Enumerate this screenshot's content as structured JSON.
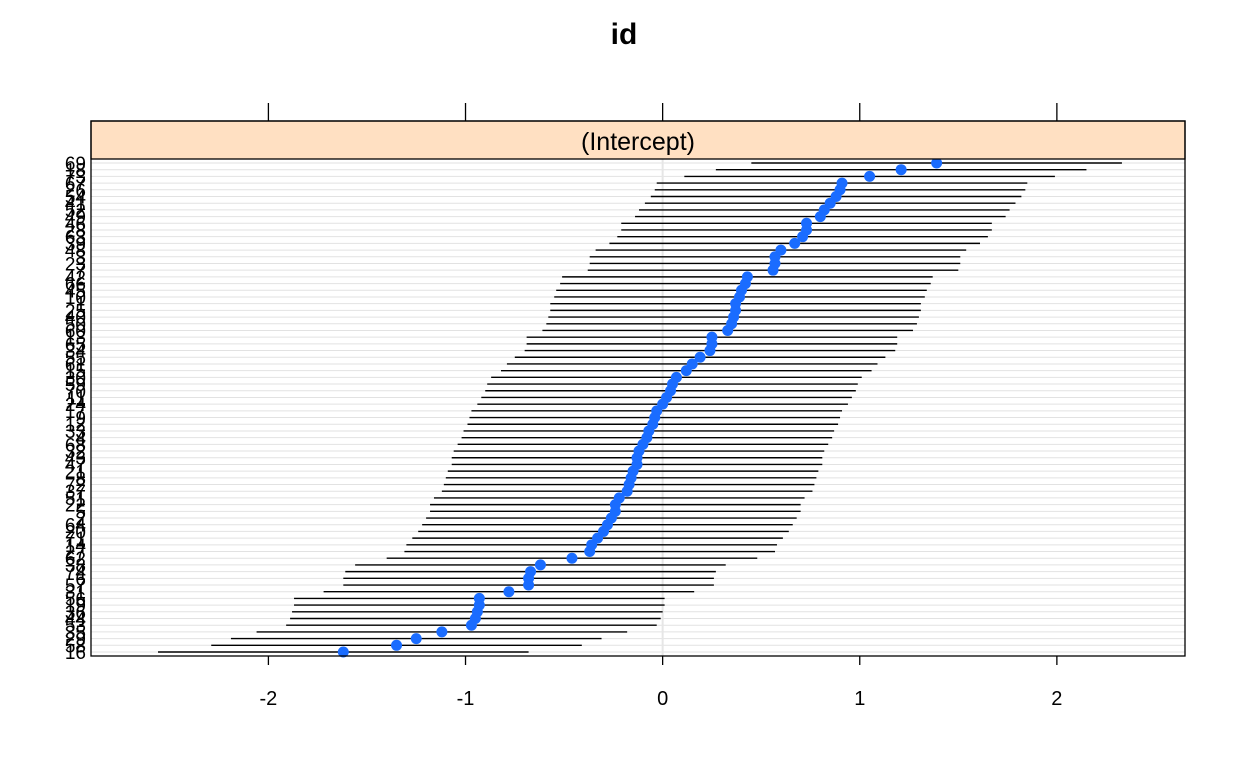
{
  "chart_data": {
    "type": "scatter",
    "subtype": "caterpillar dot plot with interval bars",
    "title": "id",
    "panel_label": "(Intercept)",
    "xlabel": "",
    "ylabel": "",
    "xlim": [
      -2.9,
      2.65
    ],
    "x_ticks": [
      -2,
      -1,
      0,
      1,
      2
    ],
    "x_tick_labels": [
      "-2",
      "-1",
      "0",
      "1",
      "2"
    ],
    "reference_line_x": 0,
    "grid": true,
    "y_axis_note": "overlapping subject-id tick labels, sorted by estimate",
    "colors": {
      "point": "#1a6cff",
      "strip": "#ffe0c2",
      "interval": "#000000",
      "gridline": "#e2e2e2",
      "refline": "#e6e6e6"
    },
    "levels": [
      "16",
      "58",
      "29",
      "35",
      "53",
      "44",
      "36",
      "19",
      "56",
      "31",
      "57",
      "6",
      "74",
      "38",
      "62",
      "27",
      "14",
      "71",
      "20",
      "64",
      "2",
      "5",
      "22",
      "51",
      "37",
      "72",
      "8",
      "21",
      "47",
      "43",
      "32",
      "68",
      "4",
      "33",
      "12",
      "9",
      "17",
      "24",
      "11",
      "70",
      "59",
      "30",
      "15",
      "61",
      "55",
      "34",
      "65",
      "13",
      "60",
      "50",
      "40",
      "25",
      "1",
      "10",
      "45",
      "66",
      "42",
      "7",
      "23",
      "3",
      "48",
      "39",
      "63",
      "28",
      "46",
      "49",
      "52",
      "41",
      "54",
      "26",
      "67",
      "73",
      "18",
      "69"
    ],
    "estimates": [
      -1.62,
      -1.35,
      -1.25,
      -1.12,
      -0.97,
      -0.95,
      -0.94,
      -0.93,
      -0.93,
      -0.78,
      -0.68,
      -0.68,
      -0.67,
      -0.62,
      -0.46,
      -0.37,
      -0.36,
      -0.33,
      -0.3,
      -0.28,
      -0.26,
      -0.24,
      -0.24,
      -0.22,
      -0.18,
      -0.17,
      -0.16,
      -0.15,
      -0.13,
      -0.13,
      -0.12,
      -0.1,
      -0.08,
      -0.07,
      -0.05,
      -0.04,
      -0.03,
      0.0,
      0.02,
      0.04,
      0.05,
      0.07,
      0.12,
      0.15,
      0.19,
      0.24,
      0.25,
      0.25,
      0.33,
      0.35,
      0.36,
      0.37,
      0.37,
      0.39,
      0.4,
      0.42,
      0.43,
      0.56,
      0.57,
      0.57,
      0.6,
      0.67,
      0.71,
      0.73,
      0.73,
      0.8,
      0.82,
      0.85,
      0.88,
      0.9,
      0.91,
      1.05,
      1.21,
      1.39
    ],
    "lower": [
      -2.56,
      -2.29,
      -2.19,
      -2.06,
      -1.91,
      -1.89,
      -1.88,
      -1.87,
      -1.87,
      -1.72,
      -1.62,
      -1.62,
      -1.61,
      -1.56,
      -1.4,
      -1.31,
      -1.3,
      -1.27,
      -1.24,
      -1.22,
      -1.2,
      -1.18,
      -1.18,
      -1.16,
      -1.12,
      -1.11,
      -1.1,
      -1.09,
      -1.07,
      -1.07,
      -1.06,
      -1.04,
      -1.02,
      -1.01,
      -0.99,
      -0.98,
      -0.97,
      -0.94,
      -0.92,
      -0.9,
      -0.89,
      -0.87,
      -0.82,
      -0.79,
      -0.75,
      -0.7,
      -0.69,
      -0.69,
      -0.61,
      -0.59,
      -0.58,
      -0.57,
      -0.57,
      -0.55,
      -0.54,
      -0.52,
      -0.51,
      -0.38,
      -0.37,
      -0.37,
      -0.34,
      -0.27,
      -0.23,
      -0.21,
      -0.21,
      -0.14,
      -0.12,
      -0.09,
      -0.06,
      -0.04,
      -0.03,
      0.11,
      0.27,
      0.45
    ],
    "upper": [
      -0.68,
      -0.41,
      -0.31,
      -0.18,
      -0.03,
      -0.01,
      0.0,
      0.01,
      0.01,
      0.16,
      0.26,
      0.26,
      0.27,
      0.32,
      0.48,
      0.57,
      0.58,
      0.61,
      0.64,
      0.66,
      0.68,
      0.7,
      0.7,
      0.72,
      0.76,
      0.77,
      0.78,
      0.79,
      0.81,
      0.81,
      0.82,
      0.84,
      0.86,
      0.87,
      0.89,
      0.9,
      0.91,
      0.94,
      0.96,
      0.98,
      0.99,
      1.01,
      1.06,
      1.09,
      1.13,
      1.18,
      1.19,
      1.19,
      1.27,
      1.29,
      1.3,
      1.31,
      1.31,
      1.33,
      1.34,
      1.36,
      1.37,
      1.5,
      1.51,
      1.51,
      1.54,
      1.61,
      1.65,
      1.67,
      1.67,
      1.74,
      1.76,
      1.79,
      1.82,
      1.84,
      1.85,
      1.99,
      2.15,
      2.33
    ]
  }
}
